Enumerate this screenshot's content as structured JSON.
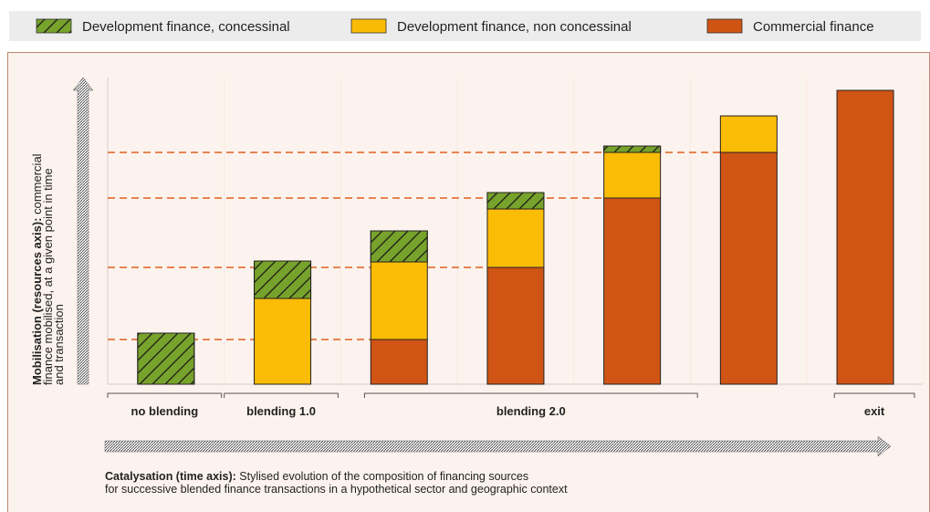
{
  "chart_data": {
    "type": "stacked_bar",
    "categories": [
      "no blending",
      "blending 1.0",
      "blending 2.0",
      "blending 2.0",
      "blending 2.0",
      "blending 2.0",
      "exit"
    ],
    "series": [
      {
        "name": "Development finance, concessinal",
        "color": "#77a22b",
        "hatch": true,
        "values": [
          56,
          41,
          34,
          18,
          7,
          null,
          null
        ]
      },
      {
        "name": "Development finance, non concessinal",
        "color": "#fbbc05",
        "values": [
          null,
          94,
          85,
          64,
          50,
          40,
          null
        ]
      },
      {
        "name": "Commercial finance",
        "color": "#d05414",
        "values": [
          null,
          null,
          49,
          128,
          204,
          254,
          322
        ]
      }
    ],
    "ylim": [
      0,
      336
    ],
    "y_label": {
      "bold": "Mobilisation (resources axis):",
      "lines": [
        " commercial",
        "finance mobilised, at a given point in time",
        "and transaction"
      ]
    },
    "x_label": {
      "bold": "Catalysation  (time axis):",
      "lines": [
        " Stylised evolution of  the composition of financing sources",
        "for successive blended finance transactions in a hypothetical sector and geographic context"
      ]
    }
  }
}
